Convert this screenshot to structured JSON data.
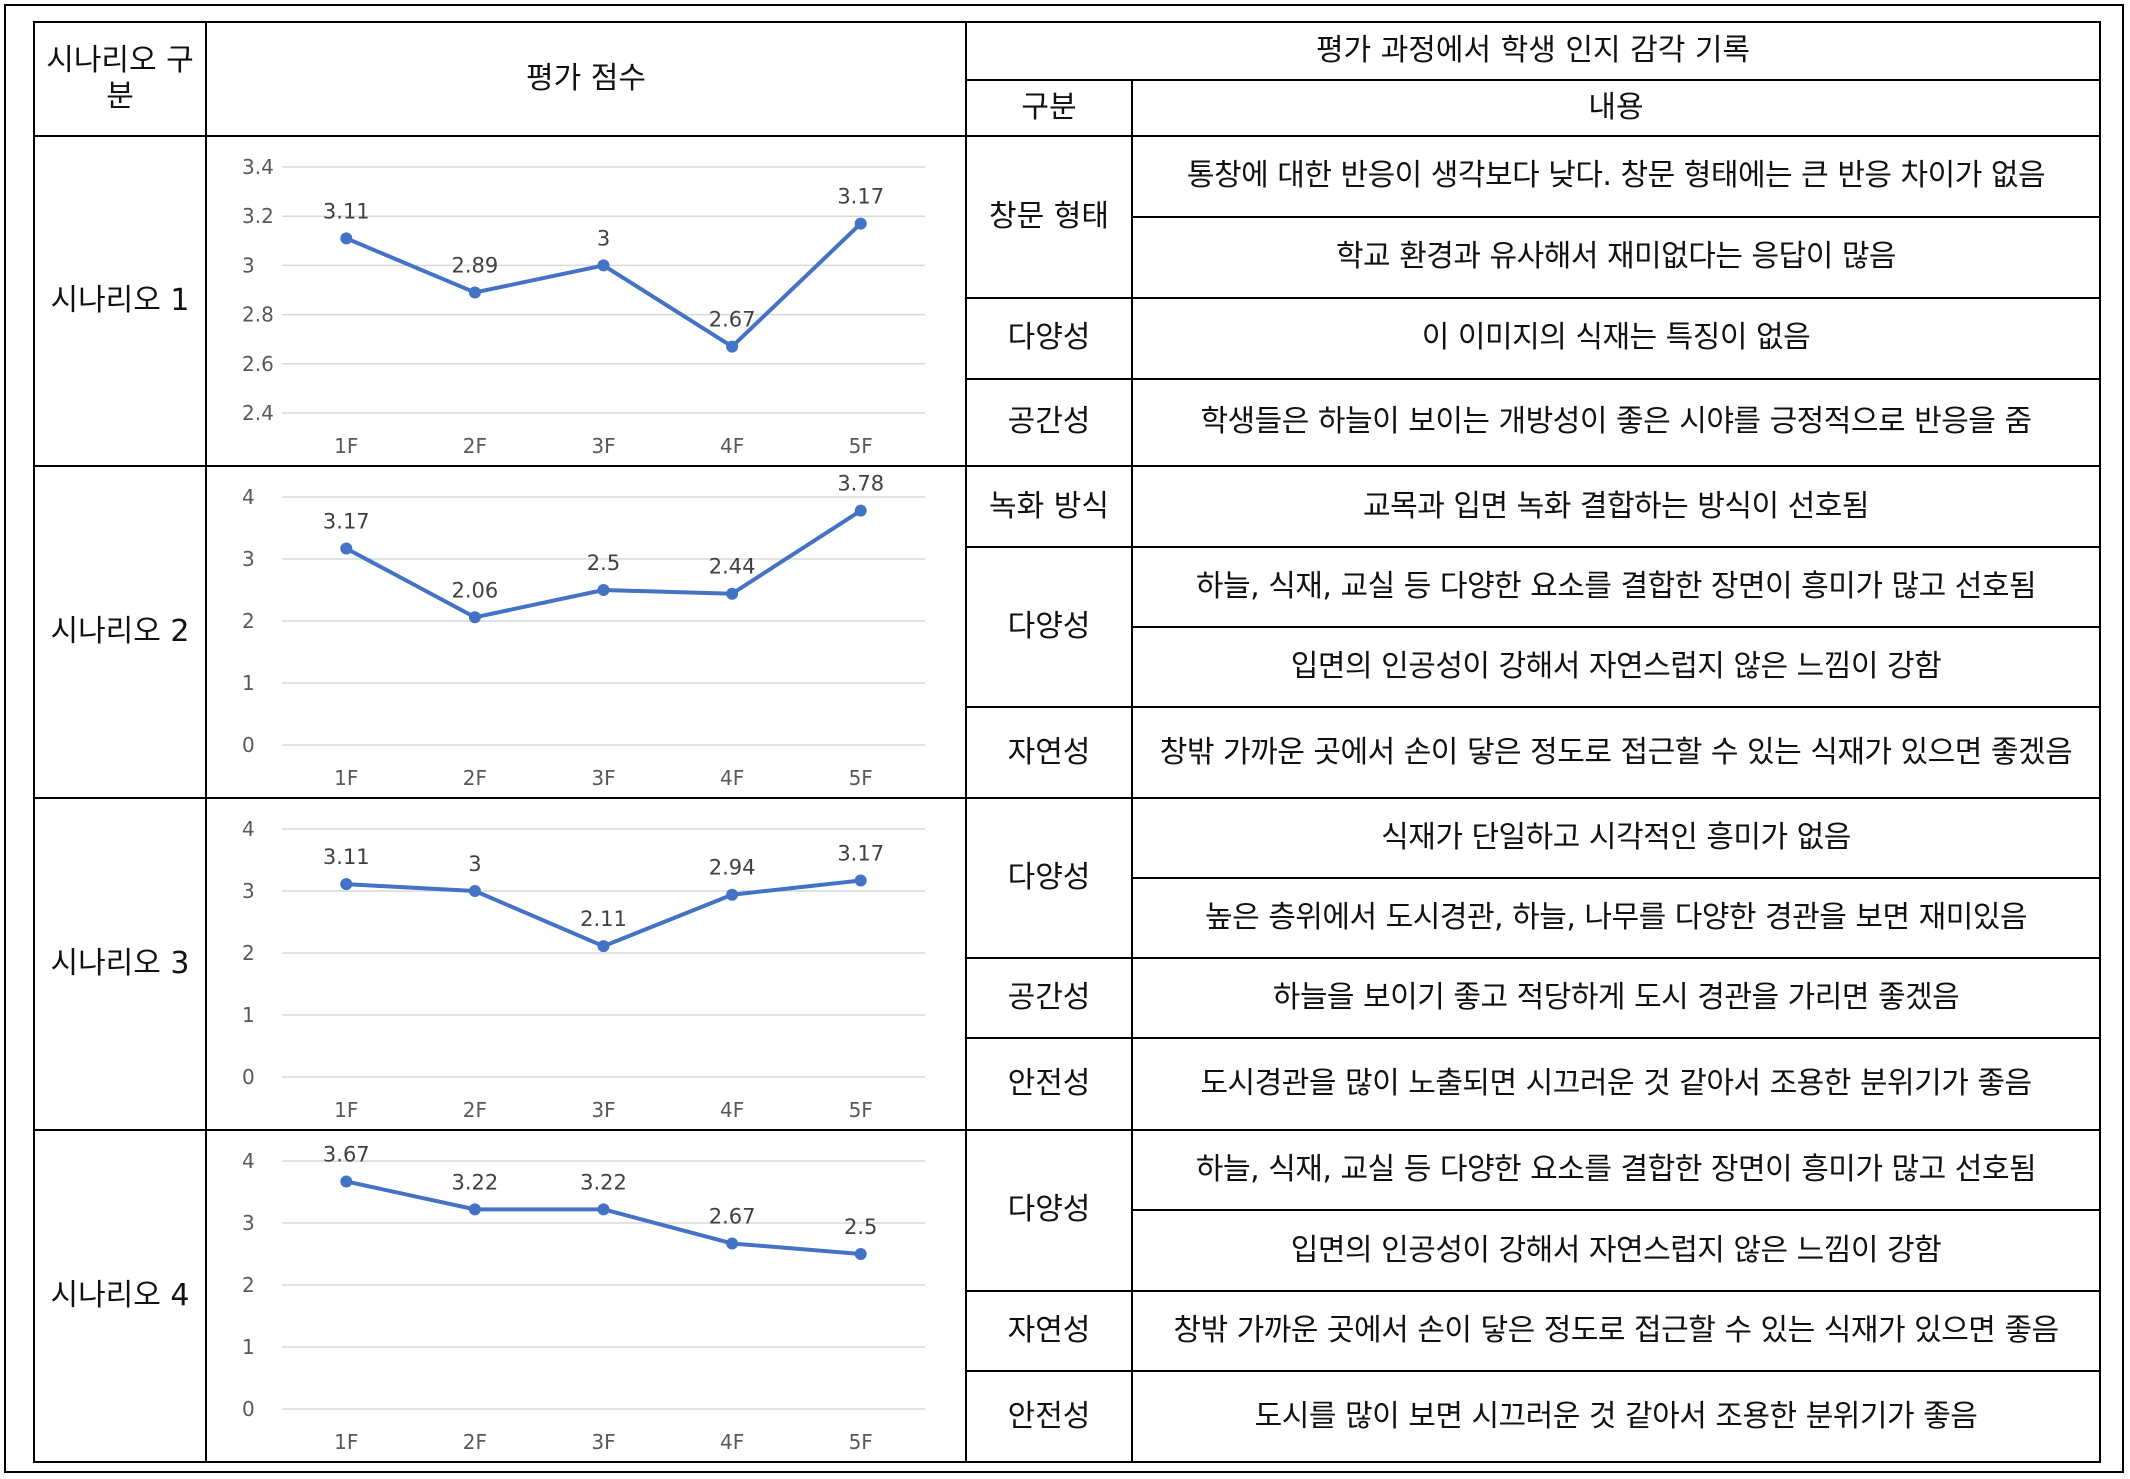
{
  "header": {
    "scenario_col": "시나리오 구분",
    "score_col": "평가 점수",
    "record_col": "평가 과정에서 학생 인지 감각 기록",
    "category_col": "구분",
    "content_col": "내용"
  },
  "rows": [
    {
      "scenario": "시나리오 1",
      "records": [
        {
          "category": "창문 형태",
          "items": [
            "통창에 대한 반응이 생각보다 낮다. 창문 형태에는 큰 반응 차이가 없음",
            "학교 환경과 유사해서 재미없다는 응답이 많음"
          ]
        },
        {
          "category": "다양성",
          "items": [
            "이 이미지의 식재는 특징이 없음"
          ]
        },
        {
          "category": "공간성",
          "items": [
            "학생들은 하늘이 보이는 개방성이 좋은 시야를 긍정적으로 반응을 줌"
          ]
        }
      ]
    },
    {
      "scenario": "시나리오 2",
      "records": [
        {
          "category": "녹화 방식",
          "items": [
            "교목과 입면 녹화 결합하는 방식이 선호됨"
          ]
        },
        {
          "category": "다양성",
          "items": [
            "하늘, 식재, 교실 등 다양한 요소를 결합한 장면이 흥미가 많고 선호됨",
            "입면의 인공성이 강해서 자연스럽지 않은 느낌이 강함"
          ]
        },
        {
          "category": "자연성",
          "items": [
            "창밖 가까운 곳에서 손이 닿은 정도로 접근할 수 있는 식재가 있으면 좋겠음"
          ]
        }
      ]
    },
    {
      "scenario": "시나리오 3",
      "records": [
        {
          "category": "다양성",
          "items": [
            "식재가 단일하고 시각적인 흥미가 없음",
            "높은 층위에서 도시경관, 하늘, 나무를 다양한 경관을 보면 재미있음"
          ]
        },
        {
          "category": "공간성",
          "items": [
            "하늘을 보이기 좋고 적당하게 도시 경관을 가리면 좋겠음"
          ]
        },
        {
          "category": "안전성",
          "items": [
            "도시경관을 많이 노출되면 시끄러운 것 같아서 조용한 분위기가 좋음"
          ]
        }
      ]
    },
    {
      "scenario": "시나리오 4",
      "records": [
        {
          "category": "다양성",
          "items": [
            "하늘, 식재, 교실 등 다양한 요소를 결합한 장면이 흥미가 많고 선호됨",
            "입면의 인공성이 강해서 자연스럽지 않은 느낌이 강함"
          ]
        },
        {
          "category": "자연성",
          "items": [
            "창밖 가까운 곳에서 손이 닿은 정도로 접근할 수 있는 식재가 있으면 좋음"
          ]
        },
        {
          "category": "안전성",
          "items": [
            "도시를 많이 보면 시끄러운 것 같아서 조용한 분위기가 좋음"
          ]
        }
      ]
    }
  ],
  "chart_data": [
    {
      "type": "line",
      "categories": [
        "1F",
        "2F",
        "3F",
        "4F",
        "5F"
      ],
      "values": [
        3.11,
        2.89,
        3,
        2.67,
        3.17
      ],
      "labels": [
        "3.11",
        "2.89",
        "3",
        "2.67",
        "3.17"
      ],
      "yticks": [
        "2.4",
        "2.6",
        "2.8",
        "3",
        "3.2",
        "3.4"
      ],
      "ylim": [
        2.4,
        3.4
      ],
      "grid": true,
      "color": "#4472C4"
    },
    {
      "type": "line",
      "categories": [
        "1F",
        "2F",
        "3F",
        "4F",
        "5F"
      ],
      "values": [
        3.17,
        2.06,
        2.5,
        2.44,
        3.78
      ],
      "labels": [
        "3.17",
        "2.06",
        "2.5",
        "2.44",
        "3.78"
      ],
      "yticks": [
        "0",
        "1",
        "2",
        "3",
        "4"
      ],
      "ylim": [
        0,
        4
      ],
      "grid": true,
      "color": "#4472C4"
    },
    {
      "type": "line",
      "categories": [
        "1F",
        "2F",
        "3F",
        "4F",
        "5F"
      ],
      "values": [
        3.11,
        3,
        2.11,
        2.94,
        3.17
      ],
      "labels": [
        "3.11",
        "3",
        "2.11",
        "2.94",
        "3.17"
      ],
      "yticks": [
        "0",
        "1",
        "2",
        "3",
        "4"
      ],
      "ylim": [
        0,
        4
      ],
      "grid": true,
      "color": "#4472C4"
    },
    {
      "type": "line",
      "categories": [
        "1F",
        "2F",
        "3F",
        "4F",
        "5F"
      ],
      "values": [
        3.67,
        3.22,
        3.22,
        2.67,
        2.5
      ],
      "labels": [
        "3.67",
        "3.22",
        "3.22",
        "2.67",
        "2.5"
      ],
      "yticks": [
        "0",
        "1",
        "2",
        "3",
        "4"
      ],
      "ylim": [
        0,
        4
      ],
      "grid": true,
      "color": "#4472C4"
    }
  ]
}
